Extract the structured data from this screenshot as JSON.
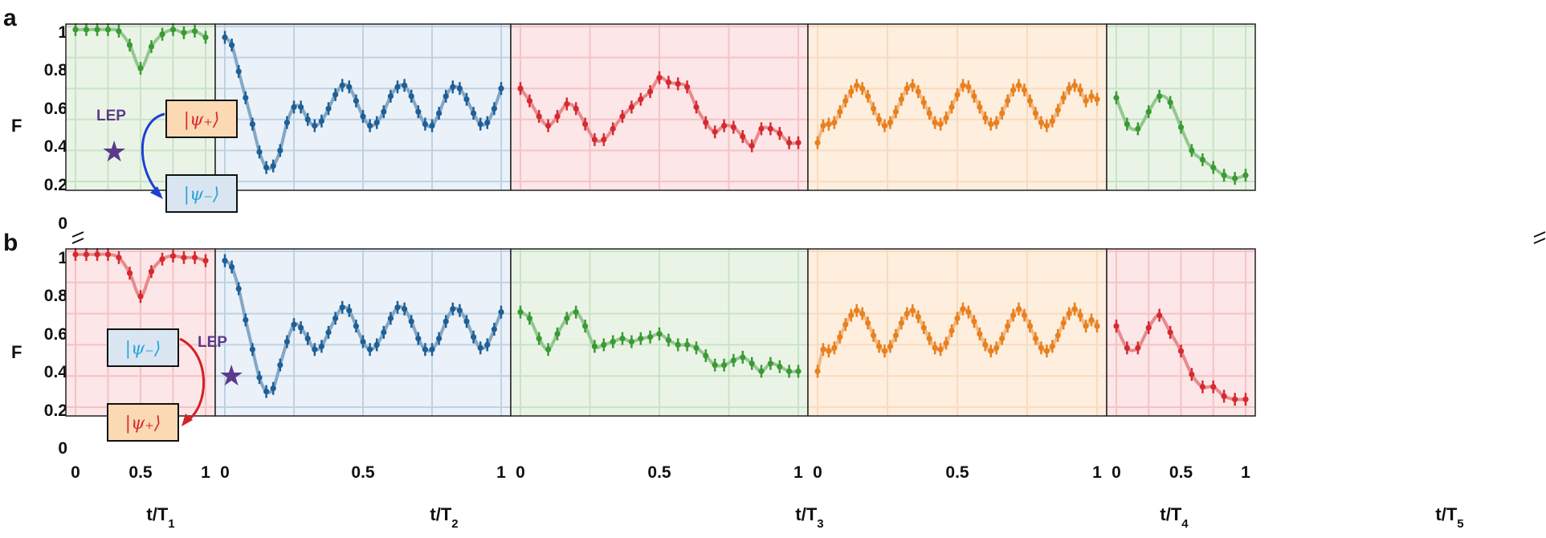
{
  "panel_labels": [
    "a",
    "b"
  ],
  "y_axis_label": "F",
  "y_ticks": [
    "0",
    "0.2",
    "0.4",
    "0.6",
    "0.8",
    "1"
  ],
  "annotations": {
    "lep": "LEP",
    "psi_plus": "|ψ₊⟩",
    "psi_minus": "|ψ₋⟩",
    "star": "★"
  },
  "colors": {
    "green": "#3a9a35",
    "blue": "#1f5f96",
    "red": "#d62a30",
    "orange": "#e8801e",
    "green_bg": "#eaf4e6",
    "blue_bg": "#eaf1f8",
    "red_bg": "#fce6e7",
    "orange_bg": "#fdeedd",
    "lep_purple": "#5b3a8c"
  },
  "chart_data": [
    {
      "type": "line",
      "x_label": "t/T1",
      "x_ticks": [
        "0",
        "0.5",
        "1"
      ],
      "xlim": [
        0,
        1
      ],
      "ylim": [
        0,
        1
      ],
      "row_a": {
        "color": "green",
        "points_x": [
          0,
          0.083,
          0.167,
          0.25,
          0.333,
          0.417,
          0.5,
          0.583,
          0.667,
          0.75,
          0.833,
          0.917,
          1
        ],
        "points_y": [
          0.98,
          0.98,
          0.98,
          0.98,
          0.97,
          0.88,
          0.73,
          0.87,
          0.95,
          0.98,
          0.96,
          0.97,
          0.93
        ]
      },
      "row_b": {
        "color": "red",
        "points_x": [
          0,
          0.083,
          0.167,
          0.25,
          0.333,
          0.417,
          0.5,
          0.583,
          0.667,
          0.75,
          0.833,
          0.917,
          1
        ],
        "points_y": [
          0.98,
          0.98,
          0.98,
          0.98,
          0.96,
          0.86,
          0.71,
          0.87,
          0.95,
          0.97,
          0.96,
          0.96,
          0.94
        ]
      }
    },
    {
      "type": "line",
      "x_label": "t/T2",
      "x_ticks": [
        "0",
        "0.5",
        "1"
      ],
      "xlim": [
        0,
        1
      ],
      "ylim": [
        0,
        1
      ],
      "row_a": {
        "color": "blue",
        "points_x": [
          0,
          0.025,
          0.05,
          0.075,
          0.1,
          0.125,
          0.15,
          0.175,
          0.2,
          0.225,
          0.25,
          0.275,
          0.3,
          0.325,
          0.35,
          0.375,
          0.4,
          0.425,
          0.45,
          0.475,
          0.5,
          0.525,
          0.55,
          0.575,
          0.6,
          0.625,
          0.65,
          0.675,
          0.7,
          0.725,
          0.75,
          0.775,
          0.8,
          0.825,
          0.85,
          0.875,
          0.9,
          0.925,
          0.95,
          0.975,
          1
        ],
        "points_y": [
          0.93,
          0.88,
          0.71,
          0.54,
          0.37,
          0.19,
          0.09,
          0.1,
          0.2,
          0.38,
          0.48,
          0.48,
          0.4,
          0.36,
          0.39,
          0.47,
          0.56,
          0.62,
          0.61,
          0.52,
          0.42,
          0.36,
          0.38,
          0.45,
          0.55,
          0.61,
          0.62,
          0.55,
          0.45,
          0.37,
          0.36,
          0.44,
          0.55,
          0.61,
          0.6,
          0.53,
          0.44,
          0.37,
          0.38,
          0.47,
          0.6
        ]
      },
      "row_b": {
        "color": "blue",
        "points_x": [
          0,
          0.025,
          0.05,
          0.075,
          0.1,
          0.125,
          0.15,
          0.175,
          0.2,
          0.225,
          0.25,
          0.275,
          0.3,
          0.325,
          0.35,
          0.375,
          0.4,
          0.425,
          0.45,
          0.475,
          0.5,
          0.525,
          0.55,
          0.575,
          0.6,
          0.625,
          0.65,
          0.675,
          0.7,
          0.725,
          0.75,
          0.775,
          0.8,
          0.825,
          0.85,
          0.875,
          0.9,
          0.925,
          0.95,
          0.975,
          1
        ],
        "points_y": [
          0.94,
          0.9,
          0.76,
          0.56,
          0.37,
          0.19,
          0.1,
          0.12,
          0.27,
          0.42,
          0.53,
          0.51,
          0.44,
          0.37,
          0.39,
          0.48,
          0.57,
          0.64,
          0.62,
          0.52,
          0.42,
          0.37,
          0.4,
          0.48,
          0.57,
          0.64,
          0.63,
          0.55,
          0.44,
          0.37,
          0.37,
          0.44,
          0.55,
          0.63,
          0.62,
          0.55,
          0.45,
          0.38,
          0.4,
          0.5,
          0.61
        ]
      }
    },
    {
      "type": "line",
      "x_label": "t/T3",
      "x_ticks": [
        "0",
        "0.5",
        "1"
      ],
      "xlim": [
        0,
        1
      ],
      "ylim": [
        0,
        1
      ],
      "row_a": {
        "color": "red",
        "points_x": [
          0,
          0.033,
          0.067,
          0.1,
          0.133,
          0.167,
          0.2,
          0.233,
          0.267,
          0.3,
          0.333,
          0.367,
          0.4,
          0.433,
          0.467,
          0.5,
          0.533,
          0.567,
          0.6,
          0.633,
          0.667,
          0.7,
          0.733,
          0.767,
          0.8,
          0.833,
          0.867,
          0.9,
          0.933,
          0.967,
          1
        ],
        "points_y": [
          0.6,
          0.52,
          0.42,
          0.36,
          0.42,
          0.5,
          0.47,
          0.37,
          0.27,
          0.27,
          0.34,
          0.42,
          0.48,
          0.53,
          0.58,
          0.67,
          0.64,
          0.63,
          0.61,
          0.48,
          0.38,
          0.32,
          0.36,
          0.35,
          0.29,
          0.23,
          0.34,
          0.34,
          0.31,
          0.25,
          0.25
        ]
      },
      "row_b": {
        "color": "green",
        "points_x": [
          0,
          0.033,
          0.067,
          0.1,
          0.133,
          0.167,
          0.2,
          0.233,
          0.267,
          0.3,
          0.333,
          0.367,
          0.4,
          0.433,
          0.467,
          0.5,
          0.533,
          0.567,
          0.6,
          0.633,
          0.667,
          0.7,
          0.733,
          0.767,
          0.8,
          0.833,
          0.867,
          0.9,
          0.933,
          0.967,
          1
        ],
        "points_y": [
          0.61,
          0.57,
          0.44,
          0.37,
          0.47,
          0.57,
          0.61,
          0.52,
          0.39,
          0.4,
          0.42,
          0.44,
          0.42,
          0.44,
          0.45,
          0.47,
          0.43,
          0.4,
          0.4,
          0.38,
          0.33,
          0.27,
          0.27,
          0.3,
          0.32,
          0.28,
          0.23,
          0.28,
          0.26,
          0.23,
          0.23
        ]
      }
    },
    {
      "type": "line",
      "x_label": "t/T4",
      "x_ticks": [
        "0",
        "0.5",
        "1"
      ],
      "xlim": [
        0,
        1
      ],
      "ylim": [
        0,
        1
      ],
      "row_a": {
        "color": "orange",
        "points_x": [
          0,
          0.02,
          0.04,
          0.06,
          0.08,
          0.1,
          0.12,
          0.14,
          0.16,
          0.18,
          0.2,
          0.22,
          0.24,
          0.26,
          0.28,
          0.3,
          0.32,
          0.34,
          0.36,
          0.38,
          0.4,
          0.42,
          0.44,
          0.46,
          0.48,
          0.5,
          0.52,
          0.54,
          0.56,
          0.58,
          0.6,
          0.62,
          0.64,
          0.66,
          0.68,
          0.7,
          0.72,
          0.74,
          0.76,
          0.78,
          0.8,
          0.82,
          0.84,
          0.86,
          0.88,
          0.9,
          0.92,
          0.94,
          0.96,
          0.98,
          1
        ],
        "points_y": [
          0.25,
          0.36,
          0.37,
          0.38,
          0.45,
          0.52,
          0.58,
          0.62,
          0.6,
          0.55,
          0.47,
          0.4,
          0.36,
          0.38,
          0.45,
          0.53,
          0.6,
          0.62,
          0.58,
          0.51,
          0.44,
          0.38,
          0.37,
          0.41,
          0.48,
          0.56,
          0.62,
          0.61,
          0.55,
          0.48,
          0.41,
          0.37,
          0.38,
          0.44,
          0.52,
          0.59,
          0.62,
          0.59,
          0.52,
          0.44,
          0.38,
          0.36,
          0.39,
          0.46,
          0.54,
          0.6,
          0.62,
          0.59,
          0.52,
          0.55,
          0.53
        ]
      },
      "row_b": {
        "color": "orange",
        "points_x": [
          0,
          0.02,
          0.04,
          0.06,
          0.08,
          0.1,
          0.12,
          0.14,
          0.16,
          0.18,
          0.2,
          0.22,
          0.24,
          0.26,
          0.28,
          0.3,
          0.32,
          0.34,
          0.36,
          0.38,
          0.4,
          0.42,
          0.44,
          0.46,
          0.48,
          0.5,
          0.52,
          0.54,
          0.56,
          0.58,
          0.6,
          0.62,
          0.64,
          0.66,
          0.68,
          0.7,
          0.72,
          0.74,
          0.76,
          0.78,
          0.8,
          0.82,
          0.84,
          0.86,
          0.88,
          0.9,
          0.92,
          0.94,
          0.96,
          0.98,
          1
        ],
        "points_y": [
          0.23,
          0.37,
          0.36,
          0.38,
          0.45,
          0.53,
          0.59,
          0.62,
          0.6,
          0.54,
          0.46,
          0.39,
          0.36,
          0.39,
          0.46,
          0.54,
          0.6,
          0.62,
          0.58,
          0.51,
          0.44,
          0.38,
          0.37,
          0.41,
          0.49,
          0.57,
          0.63,
          0.61,
          0.55,
          0.47,
          0.4,
          0.36,
          0.38,
          0.44,
          0.52,
          0.59,
          0.63,
          0.59,
          0.52,
          0.44,
          0.38,
          0.36,
          0.39,
          0.46,
          0.54,
          0.6,
          0.63,
          0.59,
          0.52,
          0.56,
          0.52
        ]
      }
    },
    {
      "type": "line",
      "x_label": "t/T5",
      "x_ticks": [
        "0",
        "0.5",
        "1"
      ],
      "xlim": [
        0,
        1
      ],
      "ylim": [
        0,
        1
      ],
      "row_a": {
        "color": "green",
        "points_x": [
          0,
          0.083,
          0.167,
          0.25,
          0.333,
          0.417,
          0.5,
          0.583,
          0.667,
          0.75,
          0.833,
          0.917,
          1
        ],
        "points_y": [
          0.54,
          0.37,
          0.34,
          0.45,
          0.55,
          0.51,
          0.35,
          0.2,
          0.14,
          0.09,
          0.04,
          0.02,
          0.04
        ]
      },
      "row_b": {
        "color": "red",
        "points_x": [
          0,
          0.083,
          0.167,
          0.25,
          0.333,
          0.417,
          0.5,
          0.583,
          0.667,
          0.75,
          0.833,
          0.917,
          1
        ],
        "points_y": [
          0.52,
          0.38,
          0.38,
          0.51,
          0.59,
          0.48,
          0.36,
          0.21,
          0.13,
          0.13,
          0.07,
          0.05,
          0.05
        ]
      }
    }
  ]
}
